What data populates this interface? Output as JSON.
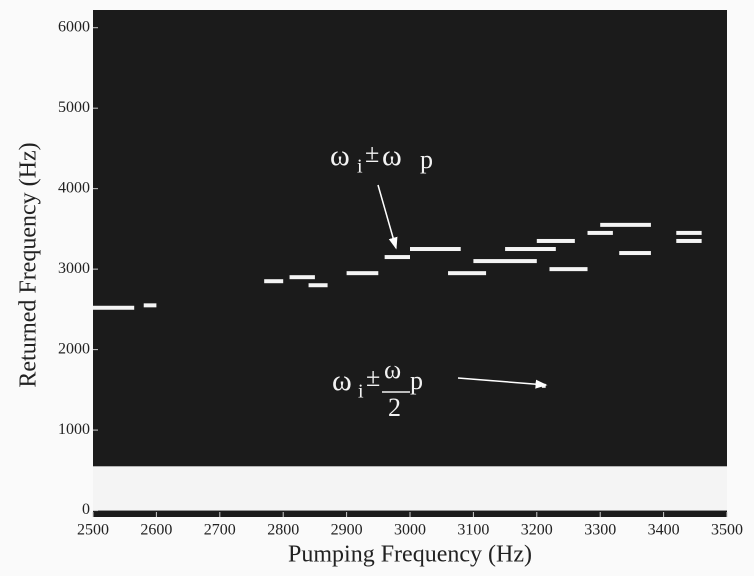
{
  "chart_data": {
    "type": "spectrogram",
    "xlabel": "Pumping Frequency (Hz)",
    "ylabel": "Returned Frequency (Hz)",
    "xlim": [
      2500,
      3500
    ],
    "ylim": [
      -80,
      6220
    ],
    "xticks": [
      2500,
      2600,
      2700,
      2800,
      2900,
      3000,
      3100,
      3200,
      3300,
      3400,
      3500
    ],
    "yticks": [
      0,
      1000,
      2000,
      3000,
      4000,
      5000,
      6000
    ],
    "background": "#1b1b1b",
    "color": "#f4f4f4",
    "band": {
      "x": [
        2500,
        3500
      ],
      "y": [
        0,
        550
      ]
    },
    "traces": [
      {
        "x": [
          2500,
          2565
        ],
        "y": 2520
      },
      {
        "x": [
          2580,
          2600
        ],
        "y": 2550
      },
      {
        "x": [
          2770,
          2800
        ],
        "y": 2850
      },
      {
        "x": [
          2810,
          2850
        ],
        "y": 2900
      },
      {
        "x": [
          2840,
          2870
        ],
        "y": 2800
      },
      {
        "x": [
          2900,
          2950
        ],
        "y": 2950
      },
      {
        "x": [
          2960,
          3000
        ],
        "y": 3150
      },
      {
        "x": [
          3000,
          3080
        ],
        "y": 3250
      },
      {
        "x": [
          3060,
          3120
        ],
        "y": 2950
      },
      {
        "x": [
          3100,
          3200
        ],
        "y": 3100
      },
      {
        "x": [
          3150,
          3230
        ],
        "y": 3250
      },
      {
        "x": [
          3200,
          3260
        ],
        "y": 3350
      },
      {
        "x": [
          3220,
          3280
        ],
        "y": 3000
      },
      {
        "x": [
          3280,
          3320
        ],
        "y": 3450
      },
      {
        "x": [
          3300,
          3380
        ],
        "y": 3550
      },
      {
        "x": [
          3330,
          3380
        ],
        "y": 3200
      },
      {
        "x": [
          3420,
          3460
        ],
        "y": 3350
      },
      {
        "x": [
          3420,
          3460
        ],
        "y": 3450
      },
      {
        "x": [
          3208,
          3214
        ],
        "y": 1550
      }
    ],
    "annotations": [
      {
        "parts": [
          "ω",
          "i",
          "±",
          "ω",
          "p"
        ]
      },
      {
        "parts": [
          "ω",
          "i",
          "±",
          "ω",
          "2",
          "p"
        ]
      }
    ]
  }
}
